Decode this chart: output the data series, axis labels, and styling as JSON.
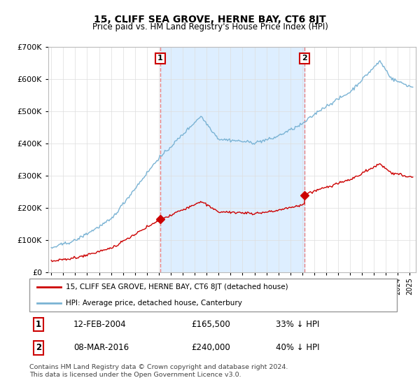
{
  "title": "15, CLIFF SEA GROVE, HERNE BAY, CT6 8JT",
  "subtitle": "Price paid vs. HM Land Registry's House Price Index (HPI)",
  "ylim": [
    0,
    700000
  ],
  "xlim_start": 1994.75,
  "xlim_end": 2025.5,
  "hpi_color": "#7ab3d4",
  "hpi_shade_color": "#ddeeff",
  "price_color": "#cc0000",
  "dashed_color": "#e88080",
  "marker1_date": 2004.12,
  "marker1_price": 165500,
  "marker1_label": "12-FEB-2004",
  "marker1_amount": "£165,500",
  "marker1_pct": "33% ↓ HPI",
  "marker2_date": 2016.19,
  "marker2_price": 240000,
  "marker2_label": "08-MAR-2016",
  "marker2_amount": "£240,000",
  "marker2_pct": "40% ↓ HPI",
  "legend_line1": "15, CLIFF SEA GROVE, HERNE BAY, CT6 8JT (detached house)",
  "legend_line2": "HPI: Average price, detached house, Canterbury",
  "footer1": "Contains HM Land Registry data © Crown copyright and database right 2024.",
  "footer2": "This data is licensed under the Open Government Licence v3.0.",
  "background_color": "#ffffff",
  "grid_color": "#dddddd"
}
